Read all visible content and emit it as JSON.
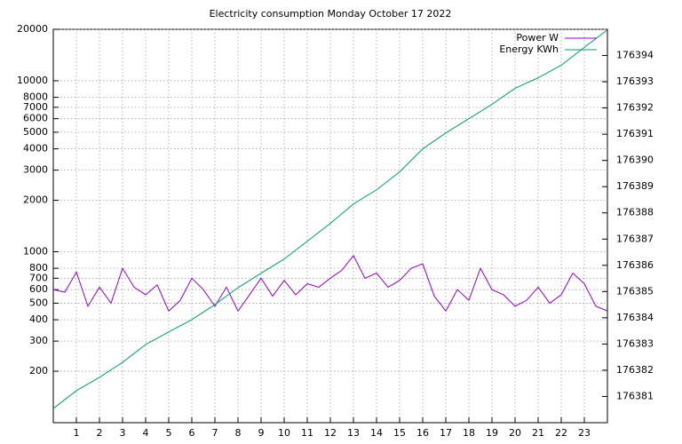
{
  "chart_data": {
    "type": "line",
    "title": "Electricity consumption Monday October 17 2022",
    "xlim": [
      0,
      24
    ],
    "xticks": [
      1,
      2,
      3,
      4,
      5,
      6,
      7,
      8,
      9,
      10,
      11,
      12,
      13,
      14,
      15,
      16,
      17,
      18,
      19,
      20,
      21,
      22,
      23
    ],
    "ylim": [
      100,
      20000
    ],
    "yscale": "log",
    "yticks": [
      200,
      300,
      400,
      500,
      600,
      700,
      800,
      1000,
      2000,
      3000,
      4000,
      5000,
      6000,
      7000,
      8000,
      10000,
      20000
    ],
    "y2lim": [
      176380,
      176395
    ],
    "y2ticks": [
      176381,
      176382,
      176383,
      176384,
      176385,
      176386,
      176387,
      176388,
      176389,
      176390,
      176391,
      176392,
      176393,
      176394
    ],
    "grid": true,
    "legend": "top-right",
    "series": [
      {
        "name": "Power W",
        "color": "#9400d3",
        "x": [
          0,
          0.5,
          1,
          1.5,
          2,
          2.5,
          3,
          3.5,
          4,
          4.5,
          5,
          5.5,
          6,
          6.5,
          7,
          7.5,
          8,
          8.5,
          9,
          9.5,
          10,
          10.5,
          11,
          11.5,
          12,
          12.5,
          13,
          13.5,
          14,
          14.5,
          15,
          15.5,
          16,
          16.5,
          17,
          17.5,
          18,
          18.5,
          19,
          19.5,
          20,
          20.5,
          21,
          21.5,
          22,
          22.5,
          23,
          23.5,
          24
        ],
        "values": [
          600,
          580,
          760,
          480,
          620,
          500,
          800,
          620,
          560,
          640,
          450,
          520,
          700,
          600,
          480,
          620,
          450,
          560,
          700,
          550,
          680,
          560,
          650,
          620,
          700,
          780,
          950,
          700,
          750,
          620,
          680,
          800,
          850,
          550,
          450,
          600,
          520,
          800,
          600,
          560,
          480,
          520,
          620,
          500,
          560,
          750,
          650,
          480,
          450
        ]
      },
      {
        "name": "Energy KWh",
        "color": "#009e73",
        "axis": "y2",
        "x": [
          0,
          1,
          2,
          3,
          4,
          5,
          6,
          7,
          8,
          9,
          10,
          11,
          12,
          13,
          14,
          15,
          16,
          17,
          18,
          19,
          20,
          21,
          22,
          23,
          24
        ],
        "values": [
          176380.54,
          176381.22,
          176381.73,
          176382.3,
          176382.98,
          176383.46,
          176383.93,
          176384.5,
          176385.15,
          176385.7,
          176386.24,
          176386.92,
          176387.6,
          176388.34,
          176388.88,
          176389.56,
          176390.44,
          176391.05,
          176391.59,
          176392.14,
          176392.75,
          176393.15,
          176393.63,
          176394.31,
          176394.98
        ]
      }
    ]
  }
}
